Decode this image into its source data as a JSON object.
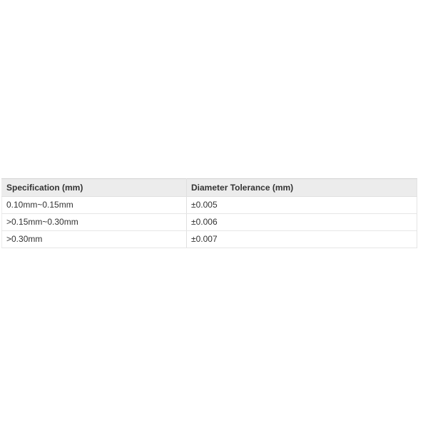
{
  "table": {
    "columns": [
      {
        "label": "Specification (mm)"
      },
      {
        "label": "Diameter Tolerance (mm)"
      }
    ],
    "rows": [
      {
        "specification": "0.10mm~0.15mm",
        "tolerance": "±0.005"
      },
      {
        "specification": ">0.15mm~0.30mm",
        "tolerance": "±0.006"
      },
      {
        "specification": ">0.30mm",
        "tolerance": "±0.007"
      }
    ]
  },
  "colors": {
    "page_background": "#ffffff",
    "header_background": "#ececec",
    "header_top_border": "#d2d2d2",
    "row_border": "#e6e6e6",
    "text": "#333333"
  }
}
